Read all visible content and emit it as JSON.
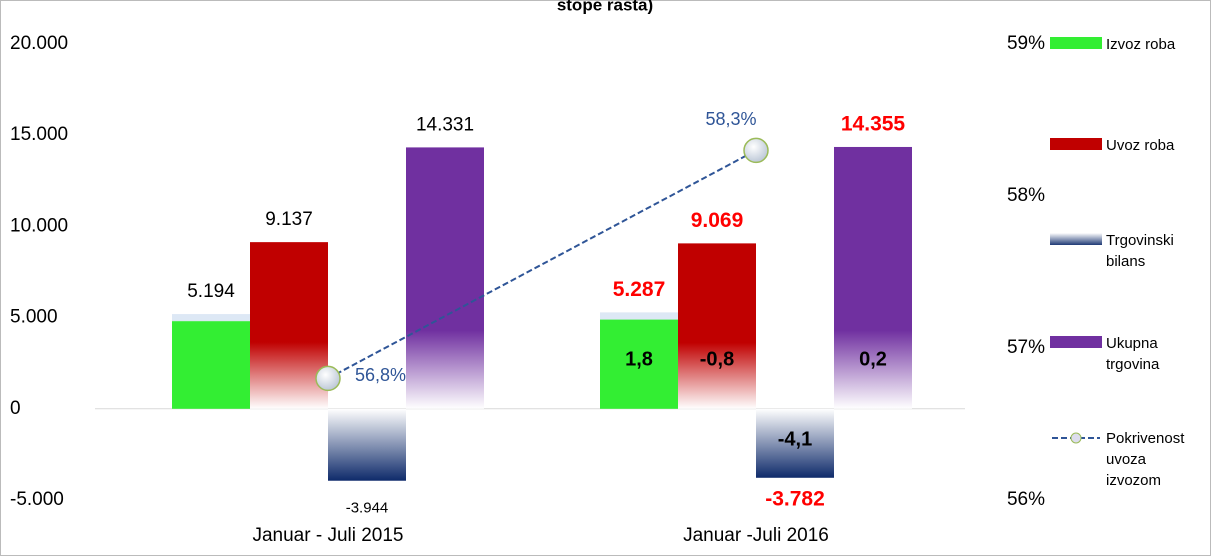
{
  "chart_data": {
    "type": "bar",
    "title": "stope rasta)",
    "categories": [
      "Januar - Juli 2015",
      "Januar -Juli 2016"
    ],
    "series": [
      {
        "name": "Izvoz roba",
        "color": "#33ee33",
        "values": [
          5194,
          5287
        ],
        "value_labels": [
          "5.194",
          "5.287"
        ]
      },
      {
        "name": "Uvoz roba",
        "color": "#c00000",
        "values": [
          9137,
          9069
        ],
        "value_labels": [
          "9.137",
          "9.069"
        ]
      },
      {
        "name": "Trgovinski bilans",
        "color": "#1f3a75",
        "values": [
          -3944,
          -3782
        ],
        "value_labels": [
          "-3.944",
          "-3.782"
        ]
      },
      {
        "name": "Ukupna trgovina",
        "color": "#7030a0",
        "values": [
          14331,
          14355
        ],
        "value_labels": [
          "14.331",
          "14.355"
        ]
      },
      {
        "name": "Pokrivenost uvoza izvozom",
        "type": "line",
        "axis": "y2",
        "color": "#2f5597",
        "values": [
          56.8,
          58.3
        ],
        "value_labels": [
          "56,8%",
          "58,3%"
        ]
      }
    ],
    "growth_labels": [
      "1,8",
      "-0,8",
      "-4,1",
      "0,2"
    ],
    "ylim": [
      -5000,
      20000
    ],
    "yticks": [
      {
        "value": -5000,
        "label": "-5.000"
      },
      0,
      {
        "value": 5000,
        "label": "5.000"
      },
      {
        "value": 10000,
        "label": "10.000"
      },
      {
        "value": 15000,
        "label": "15.000"
      },
      {
        "value": 20000,
        "label": "20.000"
      }
    ],
    "y2lim": [
      56,
      59
    ],
    "y2ticks": [
      {
        "value": 56,
        "label": "56%"
      },
      {
        "value": 57,
        "label": "57%"
      },
      {
        "value": 58,
        "label": "58%"
      },
      {
        "value": 59,
        "label": "59%"
      }
    ],
    "legend": "right"
  }
}
